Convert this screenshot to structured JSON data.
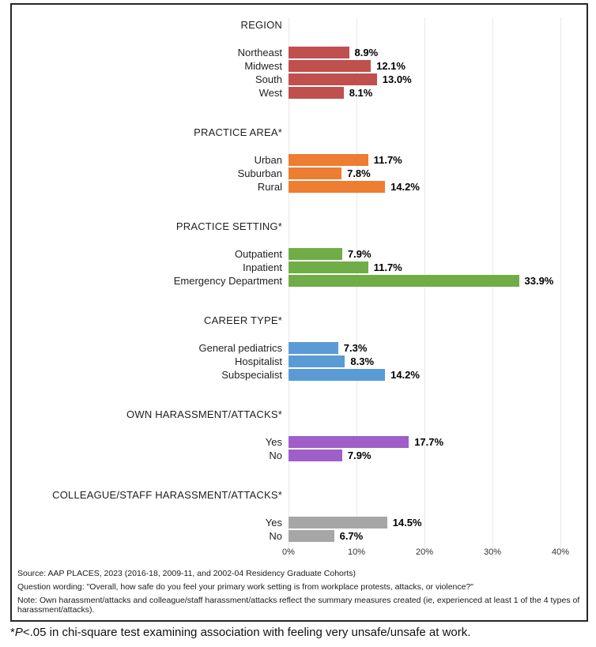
{
  "chart_data": {
    "type": "bar",
    "orientation": "horizontal",
    "title": "",
    "xlabel": "",
    "ylabel": "",
    "x_axis": {
      "range": [
        0,
        40
      ],
      "ticks": [
        "0%",
        "10%",
        "20%",
        "30%",
        "40%"
      ],
      "grid": true
    },
    "groups": [
      {
        "header": "REGION",
        "color": "#C0504D",
        "rows": [
          {
            "label": "Northeast",
            "value": 8.9,
            "value_label": "8.9%"
          },
          {
            "label": "Midwest",
            "value": 12.1,
            "value_label": "12.1%"
          },
          {
            "label": "South",
            "value": 13.0,
            "value_label": "13.0%"
          },
          {
            "label": "West",
            "value": 8.1,
            "value_label": "8.1%"
          }
        ]
      },
      {
        "header": "PRACTICE AREA*",
        "color": "#ED7D31",
        "rows": [
          {
            "label": "Urban",
            "value": 11.7,
            "value_label": "11.7%"
          },
          {
            "label": "Suburban",
            "value": 7.8,
            "value_label": "7.8%"
          },
          {
            "label": "Rural",
            "value": 14.2,
            "value_label": "14.2%"
          }
        ]
      },
      {
        "header": "PRACTICE SETTING*",
        "color": "#70AD47",
        "rows": [
          {
            "label": "Outpatient",
            "value": 7.9,
            "value_label": "7.9%"
          },
          {
            "label": "Inpatient",
            "value": 11.7,
            "value_label": "11.7%"
          },
          {
            "label": "Emergency Department",
            "value": 33.9,
            "value_label": "33.9%"
          }
        ]
      },
      {
        "header": "CAREER TYPE*",
        "color": "#5B9BD5",
        "rows": [
          {
            "label": "General pediatrics",
            "value": 7.3,
            "value_label": "7.3%"
          },
          {
            "label": "Hospitalist",
            "value": 8.3,
            "value_label": "8.3%"
          },
          {
            "label": "Subspecialist",
            "value": 14.2,
            "value_label": "14.2%"
          }
        ]
      },
      {
        "header": "OWN HARASSMENT/ATTACKS*",
        "color": "#A05EC8",
        "rows": [
          {
            "label": "Yes",
            "value": 17.7,
            "value_label": "17.7%"
          },
          {
            "label": "No",
            "value": 7.9,
            "value_label": "7.9%"
          }
        ]
      },
      {
        "header": "COLLEAGUE/STAFF HARASSMENT/ATTACKS*",
        "color": "#A6A6A6",
        "rows": [
          {
            "label": "Yes",
            "value": 14.5,
            "value_label": "14.5%"
          },
          {
            "label": "No",
            "value": 6.7,
            "value_label": "6.7%"
          }
        ]
      }
    ]
  },
  "footnotes": {
    "source": "Source: AAP PLACES, 2023 (2016-18, 2009-11, and 2002-04 Residency Graduate Cohorts)",
    "question": "Question wording: \"Overall, how safe do you feel your primary work setting is from workplace protests, attacks, or violence?\"",
    "note": "Note: Own harassment/attacks and colleague/staff harassment/attacks reflect the summary measures created (ie, experienced at least 1 of the 4 types of harassment/attacks).",
    "significance": {
      "prefix": "*",
      "p": "P",
      "rest": "<.05 in chi-square test examining association with feeling very unsafe/unsafe at work."
    }
  },
  "colors": {
    "gridline": "#e9e9e9",
    "border": "#262626",
    "value_text": "#000000"
  }
}
